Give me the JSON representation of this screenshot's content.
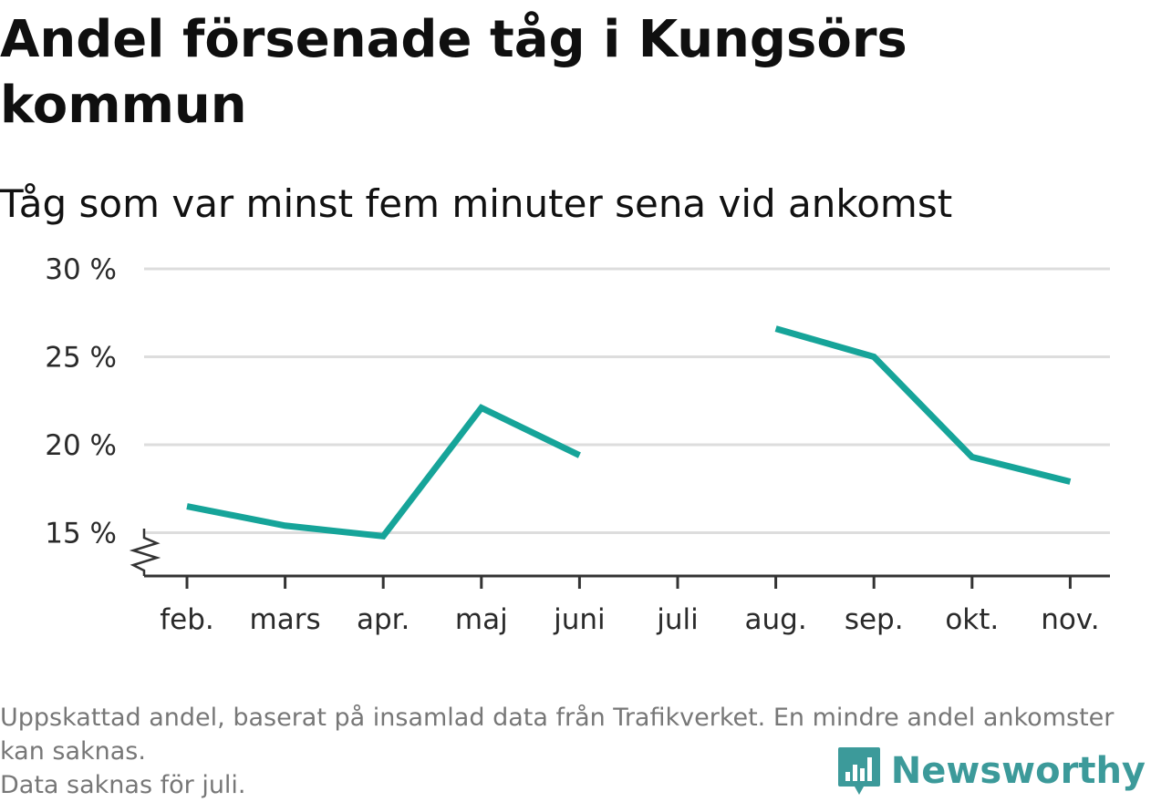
{
  "header": {
    "title": "Andel försenade tåg i Kungsörs kommun",
    "subtitle": "Tåg som var minst fem minuter sena vid ankomst"
  },
  "footer": {
    "note_line1": "Uppskattad andel, baserat på insamlad data från Trafikverket. En mindre andel ankomster kan saknas.",
    "note_line2": "Data saknas för juli.",
    "brand": "Newsworthy",
    "brand_icon": "newsworthy-logo-icon"
  },
  "colors": {
    "line": "#16a499",
    "grid": "#dddddd",
    "axis": "#333333",
    "brand": "#3c9a9a"
  },
  "chart_data": {
    "type": "line",
    "title": "Andel försenade tåg i Kungsörs kommun",
    "subtitle": "Tåg som var minst fem minuter sena vid ankomst",
    "categories": [
      "feb.",
      "mars",
      "apr.",
      "maj",
      "juni",
      "juli",
      "aug.",
      "sep.",
      "okt.",
      "nov."
    ],
    "series": [
      {
        "values": [
          16.5,
          15.4,
          14.8,
          22.1,
          19.4,
          null,
          26.6,
          25.0,
          19.3,
          17.9
        ]
      }
    ],
    "yticks": [
      "15 %",
      "20 %",
      "25 %",
      "30 %"
    ],
    "ytick_values": [
      15,
      20,
      25,
      30
    ],
    "ylim": [
      12.5,
      30
    ],
    "y_axis_break": true,
    "grid": true,
    "legend": "none"
  }
}
